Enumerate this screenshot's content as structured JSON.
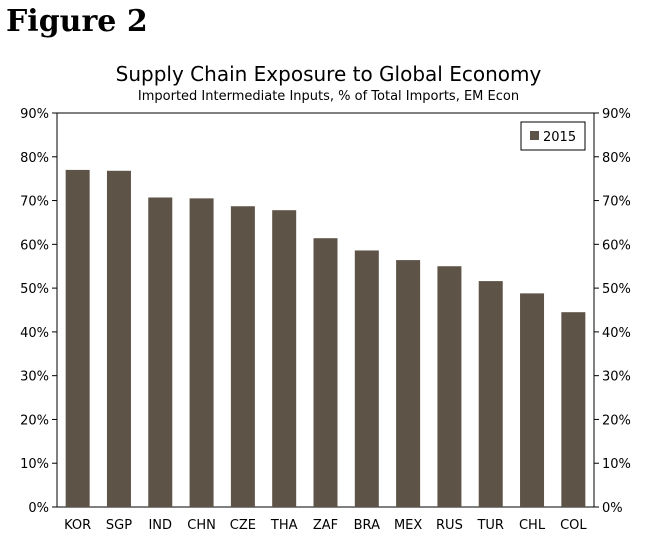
{
  "figure_label": "Figure 2",
  "chart_data": {
    "type": "bar",
    "title": "Supply Chain Exposure to Global Economy",
    "subtitle": "Imported Intermediate Inputs, % of Total Imports, EM Econ",
    "categories": [
      "KOR",
      "SGP",
      "IND",
      "CHN",
      "CZE",
      "THA",
      "ZAF",
      "BRA",
      "MEX",
      "RUS",
      "TUR",
      "CHL",
      "COL"
    ],
    "series": [
      {
        "name": "2015",
        "color": "#5e5347",
        "values": [
          77.0,
          76.8,
          70.7,
          70.5,
          68.7,
          67.8,
          61.4,
          58.6,
          56.4,
          55.0,
          51.6,
          48.8,
          44.5
        ]
      }
    ],
    "ylim": [
      0,
      90
    ],
    "yticks": [
      "0%",
      "10%",
      "20%",
      "30%",
      "40%",
      "50%",
      "60%",
      "70%",
      "80%",
      "90%"
    ],
    "y_axis_right": true,
    "grid": false,
    "legend_position": "top-right"
  }
}
